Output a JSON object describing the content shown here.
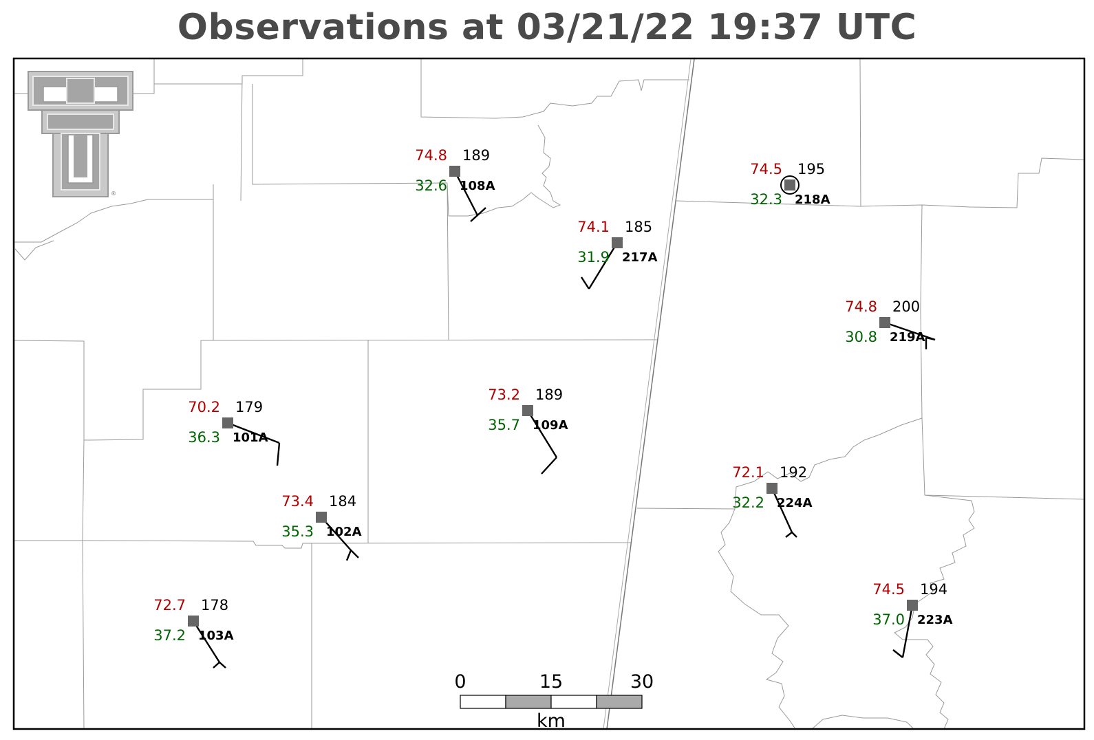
{
  "title": "Observations at 03/21/22 19:37 UTC",
  "logo": {
    "name": "texas-tech-double-t-logo",
    "trademark": "®"
  },
  "colors": {
    "temperature": "#b00000",
    "dewpoint": "#006400",
    "pressure": "#000000",
    "station_marker": "#666666",
    "county_lines": "#9a9a9a"
  },
  "stations": [
    {
      "id": "108A",
      "temp": "74.8",
      "dewpoint": "32.6",
      "pressure": "189"
    },
    {
      "id": "218A",
      "temp": "74.5",
      "dewpoint": "32.3",
      "pressure": "195",
      "circled": true
    },
    {
      "id": "217A",
      "temp": "74.1",
      "dewpoint": "31.9",
      "pressure": "185"
    },
    {
      "id": "219A",
      "temp": "74.8",
      "dewpoint": "30.8",
      "pressure": "200"
    },
    {
      "id": "109A",
      "temp": "73.2",
      "dewpoint": "35.7",
      "pressure": "189"
    },
    {
      "id": "101A",
      "temp": "70.2",
      "dewpoint": "36.3",
      "pressure": "179"
    },
    {
      "id": "224A",
      "temp": "72.1",
      "dewpoint": "32.2",
      "pressure": "192"
    },
    {
      "id": "102A",
      "temp": "73.4",
      "dewpoint": "35.3",
      "pressure": "184"
    },
    {
      "id": "223A",
      "temp": "74.5",
      "dewpoint": "37.0",
      "pressure": "194"
    },
    {
      "id": "103A",
      "temp": "72.7",
      "dewpoint": "37.2",
      "pressure": "178"
    }
  ],
  "scale_bar": {
    "labels": [
      "0",
      "15",
      "30"
    ],
    "unit": "km"
  }
}
